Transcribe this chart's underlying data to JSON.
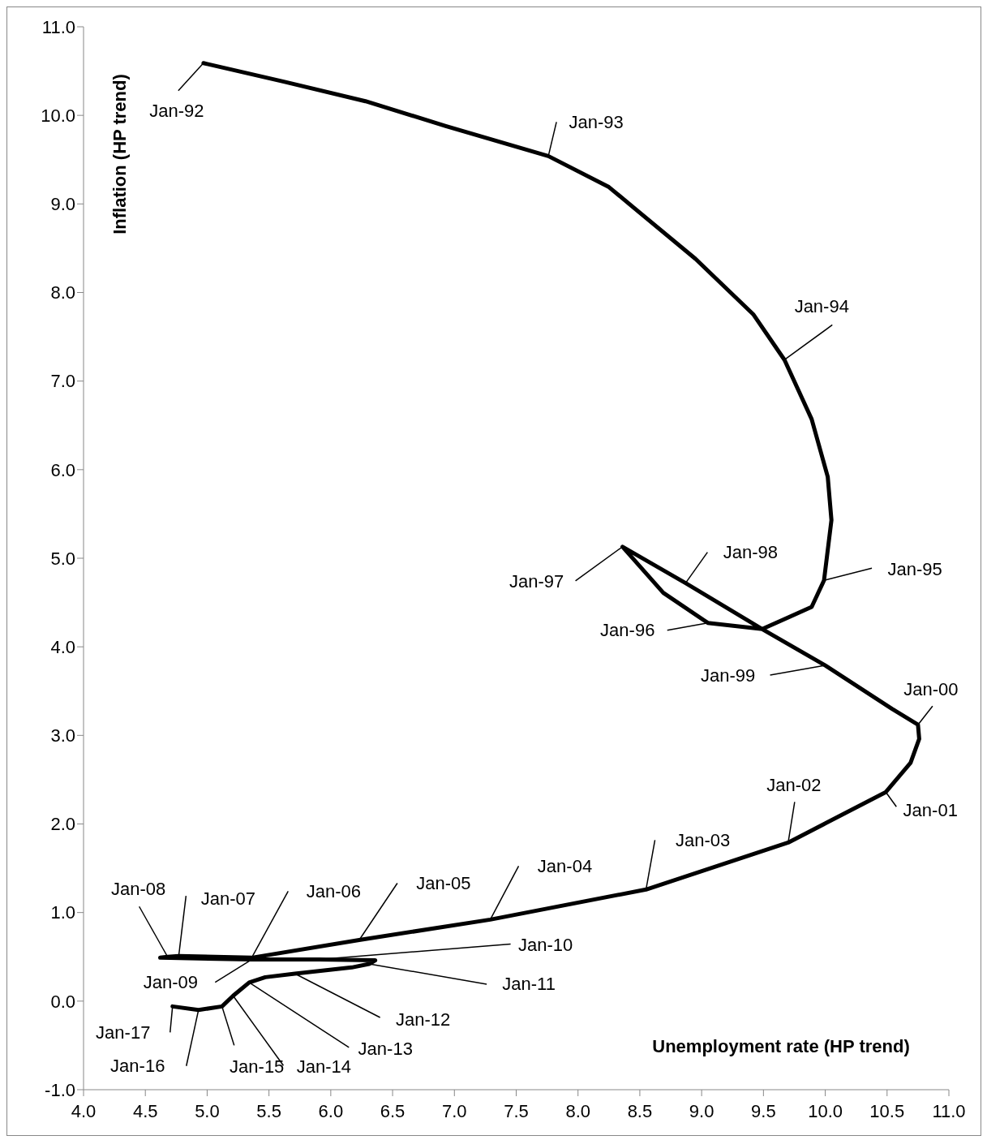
{
  "chart_data": {
    "type": "line",
    "xlabel": "Unemployment rate (HP trend)",
    "ylabel": "Inflation (HP trend)",
    "x": [
      4.97,
      5.62,
      6.28,
      6.93,
      7.76,
      8.25,
      8.95,
      9.42,
      9.67,
      9.89,
      10.02,
      10.05,
      9.99,
      9.89,
      9.49,
      9.05,
      8.69,
      8.36,
      8.87,
      9.49,
      10.0,
      10.54,
      10.75,
      10.76,
      10.69,
      10.49,
      9.7,
      8.55,
      7.29,
      6.23,
      5.36,
      4.77,
      4.68,
      4.62,
      5.36,
      5.9,
      6.36,
      6.31,
      6.17,
      5.71,
      5.47,
      5.34,
      5.21,
      5.12,
      4.93,
      4.72
    ],
    "series": [
      {
        "color": "#000000",
        "values": [
          10.59,
          10.38,
          10.16,
          9.88,
          9.54,
          9.19,
          8.38,
          7.75,
          7.24,
          6.57,
          5.92,
          5.43,
          4.75,
          4.45,
          4.2,
          4.27,
          4.61,
          5.13,
          4.72,
          4.2,
          3.79,
          3.3,
          3.12,
          2.96,
          2.69,
          2.36,
          1.79,
          1.26,
          0.92,
          0.69,
          0.49,
          0.51,
          0.5,
          0.49,
          0.47,
          0.47,
          0.46,
          0.42,
          0.38,
          0.31,
          0.27,
          0.21,
          0.06,
          -0.06,
          -0.1,
          -0.06
        ]
      }
    ],
    "xlim": [
      4,
      11
    ],
    "ylim": [
      -1,
      11
    ],
    "xticks": [
      {
        "value": 4,
        "label": "4.0"
      },
      {
        "value": 4.5,
        "label": "4.5"
      },
      {
        "value": 5,
        "label": "5.0"
      },
      {
        "value": 5.5,
        "label": "5.5"
      },
      {
        "value": 6,
        "label": "6.0"
      },
      {
        "value": 6.5,
        "label": "6.5"
      },
      {
        "value": 7,
        "label": "7.0"
      },
      {
        "value": 7.5,
        "label": "7.5"
      },
      {
        "value": 8,
        "label": "8.0"
      },
      {
        "value": 8.5,
        "label": "8.5"
      },
      {
        "value": 9,
        "label": "9.0"
      },
      {
        "value": 9.5,
        "label": "9.5"
      },
      {
        "value": 10,
        "label": "10.0"
      },
      {
        "value": 10.5,
        "label": "10.5"
      },
      {
        "value": 11,
        "label": "11.0"
      }
    ],
    "yticks": [
      {
        "value": -1,
        "label": "-1.0"
      },
      {
        "value": 0,
        "label": "0.0"
      },
      {
        "value": 1,
        "label": "1.0"
      },
      {
        "value": 2,
        "label": "2.0"
      },
      {
        "value": 3,
        "label": "3.0"
      },
      {
        "value": 4,
        "label": "4.0"
      },
      {
        "value": 5,
        "label": "5.0"
      },
      {
        "value": 6,
        "label": "6.0"
      },
      {
        "value": 7,
        "label": "7.0"
      },
      {
        "value": 8,
        "label": "8.0"
      },
      {
        "value": 9,
        "label": "9.0"
      },
      {
        "value": 10,
        "label": "10.0"
      },
      {
        "value": 11,
        "label": "11.0"
      }
    ],
    "marker": "none",
    "line_style": "solid",
    "grid": false,
    "legend": false,
    "annotations": [
      {
        "text": "Jan-92",
        "x": 4.97,
        "y": 10.59
      },
      {
        "text": "Jan-93",
        "x": 7.76,
        "y": 9.54
      },
      {
        "text": "Jan-94",
        "x": 9.67,
        "y": 7.24
      },
      {
        "text": "Jan-95",
        "x": 9.99,
        "y": 4.75
      },
      {
        "text": "Jan-96",
        "x": 9.05,
        "y": 4.27
      },
      {
        "text": "Jan-97",
        "x": 8.36,
        "y": 5.13
      },
      {
        "text": "Jan-98",
        "x": 8.87,
        "y": 4.72
      },
      {
        "text": "Jan-99",
        "x": 10.0,
        "y": 3.79
      },
      {
        "text": "Jan-00",
        "x": 10.75,
        "y": 3.12
      },
      {
        "text": "Jan-01",
        "x": 10.49,
        "y": 2.36
      },
      {
        "text": "Jan-02",
        "x": 9.7,
        "y": 1.79
      },
      {
        "text": "Jan-03",
        "x": 8.55,
        "y": 1.26
      },
      {
        "text": "Jan-04",
        "x": 7.29,
        "y": 0.92
      },
      {
        "text": "Jan-05",
        "x": 6.23,
        "y": 0.69
      },
      {
        "text": "Jan-06",
        "x": 5.36,
        "y": 0.49
      },
      {
        "text": "Jan-07",
        "x": 4.77,
        "y": 0.51
      },
      {
        "text": "Jan-08",
        "x": 4.68,
        "y": 0.5
      },
      {
        "text": "Jan-09",
        "x": 5.36,
        "y": 0.47
      },
      {
        "text": "Jan-10",
        "x": 5.9,
        "y": 0.47
      },
      {
        "text": "Jan-11",
        "x": 6.31,
        "y": 0.42
      },
      {
        "text": "Jan-12",
        "x": 5.71,
        "y": 0.31
      },
      {
        "text": "Jan-13",
        "x": 5.34,
        "y": 0.21
      },
      {
        "text": "Jan-14",
        "x": 5.21,
        "y": 0.06
      },
      {
        "text": "Jan-15",
        "x": 5.12,
        "y": -0.06
      },
      {
        "text": "Jan-16",
        "x": 4.93,
        "y": -0.1
      },
      {
        "text": "Jan-17",
        "x": 4.72,
        "y": -0.06
      }
    ]
  }
}
